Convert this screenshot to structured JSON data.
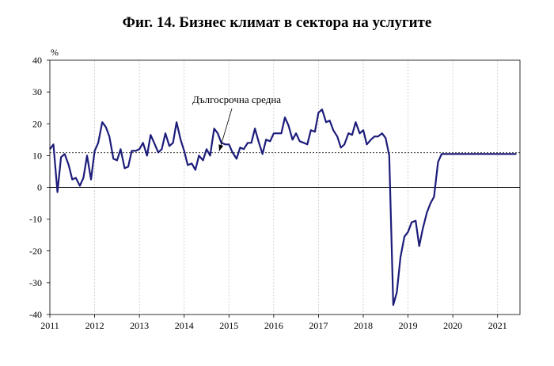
{
  "chart_data": {
    "type": "line",
    "title": "Фиг. 14. Бизнес климат в сектора на услугите",
    "ylabel": "%",
    "ylim": [
      -40,
      40
    ],
    "yticks": [
      40,
      30,
      20,
      10,
      0,
      -10,
      -20,
      -30,
      -40
    ],
    "xlim": [
      2011,
      2021.5
    ],
    "xticks": [
      "2011",
      "2012",
      "2013",
      "2014",
      "2015",
      "2016",
      "2017",
      "2018",
      "2019",
      "2020",
      "2021"
    ],
    "grid": "vertical-dashed",
    "line_color": "#1c1c7a",
    "long_term_average": 10.9,
    "annotation": "Дългосрочна средна",
    "series": [
      {
        "x": [
          2011.0,
          2011.08,
          2011.17,
          2011.25,
          2011.33,
          2011.42,
          2011.5,
          2011.58,
          2011.67,
          2011.75,
          2011.83,
          2011.92,
          2012.0,
          2012.08,
          2012.17,
          2012.25,
          2012.33,
          2012.42,
          2012.5,
          2012.58,
          2012.67,
          2012.75,
          2012.83,
          2012.92,
          2013.0,
          2013.08,
          2013.17,
          2013.25,
          2013.33,
          2013.42,
          2013.5,
          2013.58,
          2013.67,
          2013.75,
          2013.83,
          2013.92,
          2014.0,
          2014.08,
          2014.17,
          2014.25,
          2014.33,
          2014.42,
          2014.5,
          2014.58,
          2014.67,
          2014.75,
          2014.83,
          2014.92,
          2015.0,
          2015.08,
          2015.17,
          2015.25,
          2015.33,
          2015.42,
          2015.5,
          2015.58,
          2015.67,
          2015.75,
          2015.83,
          2015.92,
          2016.0,
          2016.08,
          2016.17,
          2016.25,
          2016.33,
          2016.42,
          2016.5,
          2016.58,
          2016.67,
          2016.75,
          2016.83,
          2016.92,
          2017.0,
          2017.08,
          2017.17,
          2017.25,
          2017.33,
          2017.42,
          2017.5,
          2017.58,
          2017.67,
          2017.75,
          2017.83,
          2017.92,
          2018.0,
          2018.08,
          2018.17,
          2018.25,
          2018.33,
          2018.42,
          2018.5,
          2018.58,
          2018.67,
          2018.75,
          2018.83,
          2018.92,
          2019.0,
          2019.08,
          2019.17,
          2019.25,
          2019.33,
          2019.42,
          2019.5,
          2019.58,
          2019.67,
          2019.75,
          2019.83,
          2019.92,
          2020.0,
          2020.08,
          2020.17,
          2020.25,
          2020.33,
          2020.42,
          2020.5,
          2020.58,
          2020.67,
          2020.75,
          2020.83,
          2020.92,
          2021.0,
          2021.08,
          2021.17,
          2021.25,
          2021.33,
          2021.42
        ],
        "y": [
          12.0,
          13.5,
          -1.5,
          9.5,
          10.5,
          7.0,
          2.5,
          3.0,
          0.5,
          3.0,
          10.0,
          2.5,
          11.5,
          14.0,
          20.5,
          19.0,
          16.0,
          9.0,
          8.5,
          12.0,
          6.0,
          6.5,
          11.5,
          11.5,
          12.0,
          14.0,
          10.0,
          16.5,
          14.0,
          11.0,
          12.0,
          17.0,
          13.0,
          14.0,
          20.5,
          15.0,
          11.5,
          7.0,
          7.5,
          5.5,
          10.0,
          8.5,
          12.0,
          10.0,
          18.5,
          17.0,
          14.0,
          13.5,
          13.5,
          11.0,
          9.0,
          12.5,
          12.0,
          14.0,
          14.0,
          18.5,
          14.0,
          10.5,
          15.0,
          14.5,
          17.0,
          17.0,
          17.0,
          22.0,
          19.5,
          15.0,
          17.0,
          14.5,
          14.0,
          13.5,
          18.0,
          17.5,
          23.5,
          24.5,
          20.5,
          21.0,
          18.0,
          16.0,
          12.5,
          13.5,
          17.0,
          16.5,
          20.5,
          17.0,
          18.0,
          13.5,
          15.0,
          16.0,
          16.0,
          17.0,
          15.5,
          10.0,
          -37.0,
          -33.0,
          -22.0,
          -15.5,
          -14.0,
          -11.0,
          -10.5,
          -18.5,
          -13.0,
          -8.0,
          -5.0,
          -3.0,
          8.0,
          10.5,
          10.5,
          10.5,
          10.5,
          10.5,
          10.5,
          10.5,
          10.5,
          10.5,
          10.5,
          10.5,
          10.5,
          10.5,
          10.5,
          10.5,
          10.5,
          10.5,
          10.5,
          10.5,
          10.5,
          10.5
        ]
      }
    ]
  }
}
